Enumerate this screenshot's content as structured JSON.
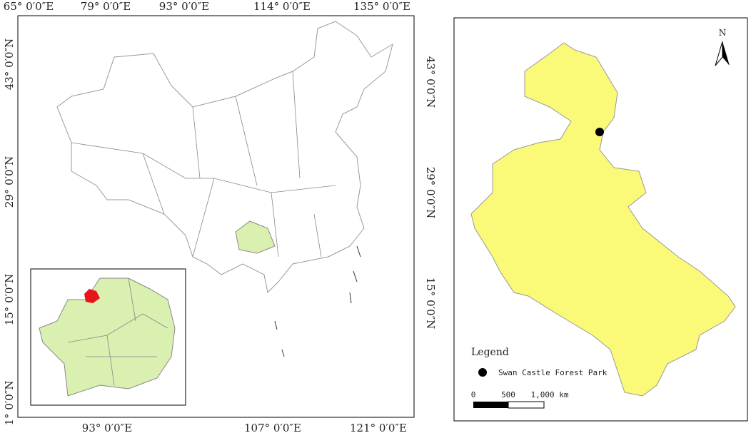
{
  "left_map": {
    "top_labels": [
      "65° 0′0″E",
      "79° 0′0″E",
      "93° 0′0″E",
      "114° 0′0″E",
      "135° 0′0″E"
    ],
    "bottom_labels": [
      "93° 0′0″E",
      "107° 0′0″E",
      "121° 0′0″E"
    ],
    "left_labels": [
      "43° 0′0″N",
      "29° 0′0″N",
      "15° 0′0″N",
      "1° 0′0″N"
    ],
    "right_labels": [
      "43° 0′0″N",
      "29° 0′0″N",
      "15° 0′0″N"
    ]
  },
  "right_map": {
    "north": "N",
    "legend": {
      "title": "Legend",
      "items": [
        "Swan Castle Forest Park"
      ]
    },
    "scale": [
      "0",
      "500",
      "1,000 km"
    ]
  }
}
